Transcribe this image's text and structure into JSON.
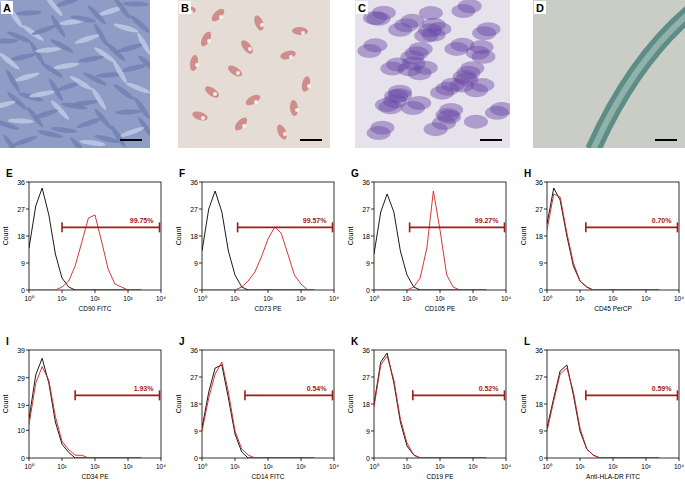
{
  "image_panels": [
    {
      "label": "A"
    },
    {
      "label": "B"
    },
    {
      "label": "C"
    },
    {
      "label": "D"
    }
  ],
  "chart_data": [
    {
      "type": "line",
      "title": "E",
      "x_label": "CD90 FITC",
      "y_label": "Count",
      "log": "x",
      "grid": false,
      "x": [
        1,
        1.6,
        2.5,
        4,
        6.3,
        10,
        16,
        25,
        40,
        63,
        100,
        160,
        250,
        400,
        630,
        1000,
        1600,
        2500
      ],
      "xlim": [
        1,
        10000
      ],
      "xticks": [
        {
          "value": 1,
          "label": "10⁰"
        },
        {
          "value": 10,
          "label": "10¹"
        },
        {
          "value": 100,
          "label": "10²"
        },
        {
          "value": 1000,
          "label": "10³"
        },
        {
          "value": 10000,
          "label": "10⁴"
        }
      ],
      "ylim": [
        0,
        36
      ],
      "yticks": [
        0,
        9,
        18,
        27,
        36
      ],
      "series": [
        {
          "color": "#000000",
          "values": [
            14,
            28,
            34,
            25,
            12,
            4,
            1,
            0,
            0,
            0,
            0,
            0,
            0,
            0,
            0,
            0,
            0,
            0
          ]
        },
        {
          "color": "#cc2222",
          "values": [
            0,
            0,
            0,
            0,
            0,
            1,
            3,
            8,
            16,
            24,
            25,
            16,
            7,
            2,
            1,
            0,
            0,
            0
          ]
        }
      ],
      "gate": [
        10,
        9000
      ],
      "annotation": "99.75%"
    },
    {
      "type": "line",
      "title": "F",
      "x_label": "CD73 PE",
      "y_label": "Count",
      "log": "x",
      "grid": false,
      "x": [
        1,
        1.6,
        2.5,
        4,
        6.3,
        10,
        16,
        25,
        40,
        63,
        100,
        160,
        250,
        400,
        630,
        1000,
        1600,
        2500
      ],
      "xlim": [
        1,
        10000
      ],
      "xticks": [
        {
          "value": 1,
          "label": "10⁰"
        },
        {
          "value": 10,
          "label": "10¹"
        },
        {
          "value": 100,
          "label": "10²"
        },
        {
          "value": 1000,
          "label": "10³"
        },
        {
          "value": 10000,
          "label": "10⁴"
        }
      ],
      "ylim": [
        0,
        36
      ],
      "yticks": [
        0,
        9,
        18,
        27,
        36
      ],
      "series": [
        {
          "color": "#000000",
          "values": [
            13,
            27,
            33,
            26,
            13,
            5,
            1,
            0,
            0,
            0,
            0,
            0,
            0,
            0,
            0,
            0,
            0,
            0
          ]
        },
        {
          "color": "#cc2222",
          "values": [
            0,
            0,
            0,
            0,
            0,
            0,
            1,
            3,
            6,
            11,
            17,
            21,
            19,
            12,
            5,
            2,
            0,
            0
          ]
        }
      ],
      "gate": [
        12,
        9000
      ],
      "annotation": "99.57%"
    },
    {
      "type": "line",
      "title": "G",
      "x_label": "CD105 PE",
      "y_label": "Count",
      "log": "x",
      "grid": false,
      "x": [
        1,
        1.6,
        2.5,
        4,
        6.3,
        10,
        16,
        25,
        40,
        63,
        100,
        160,
        250,
        400,
        630,
        1000,
        1600,
        2500
      ],
      "xlim": [
        1,
        10000
      ],
      "xticks": [
        {
          "value": 1,
          "label": "10⁰"
        },
        {
          "value": 10,
          "label": "10¹"
        },
        {
          "value": 100,
          "label": "10²"
        },
        {
          "value": 1000,
          "label": "10³"
        },
        {
          "value": 10000,
          "label": "10⁴"
        }
      ],
      "ylim": [
        0,
        36
      ],
      "yticks": [
        0,
        9,
        18,
        27,
        36
      ],
      "series": [
        {
          "color": "#000000",
          "values": [
            12,
            26,
            32,
            26,
            13,
            5,
            1,
            0,
            0,
            0,
            0,
            0,
            0,
            0,
            0,
            0,
            0,
            0
          ]
        },
        {
          "color": "#cc2222",
          "values": [
            0,
            0,
            0,
            0,
            0,
            0,
            1,
            4,
            14,
            33,
            20,
            5,
            1,
            0,
            0,
            0,
            0,
            0
          ]
        }
      ],
      "gate": [
        12,
        9000
      ],
      "annotation": "99.27%"
    },
    {
      "type": "line",
      "title": "H",
      "x_label": "CD45 PerCP",
      "y_label": "Count",
      "log": "x",
      "grid": false,
      "x": [
        1,
        1.6,
        2.5,
        4,
        6.3,
        10,
        16,
        25,
        40,
        63,
        100,
        160,
        250,
        400,
        630,
        1000,
        1600,
        2500
      ],
      "xlim": [
        1,
        10000
      ],
      "xticks": [
        {
          "value": 1,
          "label": "10⁰"
        },
        {
          "value": 10,
          "label": "10¹"
        },
        {
          "value": 100,
          "label": "10²"
        },
        {
          "value": 1000,
          "label": "10³"
        },
        {
          "value": 10000,
          "label": "10⁴"
        }
      ],
      "ylim": [
        0,
        36
      ],
      "yticks": [
        0,
        9,
        18,
        27,
        36
      ],
      "series": [
        {
          "color": "#000000",
          "values": [
            22,
            34,
            30,
            18,
            8,
            3,
            1,
            0,
            0,
            0,
            0,
            0,
            0,
            0,
            0,
            0,
            0,
            0
          ]
        },
        {
          "color": "#cc2222",
          "values": [
            20,
            32,
            31,
            19,
            9,
            3,
            1,
            0,
            0,
            0,
            0,
            0,
            0,
            0,
            0,
            0,
            0,
            0
          ]
        }
      ],
      "gate": [
        15,
        9000
      ],
      "annotation": "0.70%"
    },
    {
      "type": "line",
      "title": "I",
      "x_label": "CD34 PE",
      "y_label": "Count",
      "log": "x",
      "grid": false,
      "x": [
        1,
        1.6,
        2.5,
        4,
        6.3,
        10,
        16,
        25,
        40,
        63,
        100,
        160,
        250,
        400,
        630,
        1000,
        1600,
        2500
      ],
      "xlim": [
        1,
        10000
      ],
      "xticks": [
        {
          "value": 1,
          "label": "10⁰"
        },
        {
          "value": 10,
          "label": "10¹"
        },
        {
          "value": 100,
          "label": "10²"
        },
        {
          "value": 1000,
          "label": "10³"
        },
        {
          "value": 10000,
          "label": "10⁴"
        }
      ],
      "ylim": [
        0,
        39
      ],
      "yticks": [
        0,
        10,
        19,
        29,
        39
      ],
      "series": [
        {
          "color": "#000000",
          "values": [
            14,
            30,
            36,
            27,
            13,
            5,
            2,
            0,
            0,
            0,
            0,
            0,
            0,
            0,
            0,
            0,
            0,
            0
          ]
        },
        {
          "color": "#cc2222",
          "values": [
            12,
            27,
            33,
            28,
            15,
            6,
            3,
            1,
            1,
            0,
            0,
            0,
            0,
            0,
            0,
            0,
            0,
            0
          ]
        }
      ],
      "gate": [
        25,
        9000
      ],
      "annotation": "1.93%"
    },
    {
      "type": "line",
      "title": "J",
      "x_label": "CD14 FITC",
      "y_label": "Count",
      "log": "x",
      "grid": false,
      "x": [
        1,
        1.6,
        2.5,
        4,
        6.3,
        10,
        16,
        25,
        40,
        63,
        100,
        160,
        250,
        400,
        630,
        1000,
        1600,
        2500
      ],
      "xlim": [
        1,
        10000
      ],
      "xticks": [
        {
          "value": 1,
          "label": "10⁰"
        },
        {
          "value": 10,
          "label": "10¹"
        },
        {
          "value": 100,
          "label": "10²"
        },
        {
          "value": 1000,
          "label": "10³"
        },
        {
          "value": 10000,
          "label": "10⁴"
        }
      ],
      "ylim": [
        0,
        36
      ],
      "yticks": [
        0,
        9,
        18,
        27,
        36
      ],
      "series": [
        {
          "color": "#000000",
          "values": [
            10,
            22,
            30,
            31,
            20,
            8,
            2,
            0,
            0,
            0,
            0,
            0,
            0,
            0,
            0,
            0,
            0,
            0
          ]
        },
        {
          "color": "#cc2222",
          "values": [
            9,
            20,
            28,
            32,
            22,
            9,
            3,
            1,
            0,
            0,
            0,
            0,
            0,
            0,
            0,
            0,
            0,
            0
          ]
        }
      ],
      "gate": [
        20,
        9000
      ],
      "annotation": "0.54%"
    },
    {
      "type": "line",
      "title": "K",
      "x_label": "CD19 PE",
      "y_label": "Count",
      "log": "x",
      "grid": false,
      "x": [
        1,
        1.6,
        2.5,
        4,
        6.3,
        10,
        16,
        25,
        40,
        63,
        100,
        160,
        250,
        400,
        630,
        1000,
        1600,
        2500
      ],
      "xlim": [
        1,
        10000
      ],
      "xticks": [
        {
          "value": 1,
          "label": "10⁰"
        },
        {
          "value": 10,
          "label": "10¹"
        },
        {
          "value": 100,
          "label": "10²"
        },
        {
          "value": 1000,
          "label": "10³"
        },
        {
          "value": 10000,
          "label": "10⁴"
        }
      ],
      "ylim": [
        0,
        36
      ],
      "yticks": [
        0,
        9,
        18,
        27,
        36
      ],
      "series": [
        {
          "color": "#000000",
          "values": [
            18,
            32,
            35,
            25,
            12,
            4,
            1,
            0,
            0,
            0,
            0,
            0,
            0,
            0,
            0,
            0,
            0,
            0
          ]
        },
        {
          "color": "#cc2222",
          "values": [
            17,
            31,
            34,
            26,
            13,
            5,
            1,
            0,
            0,
            0,
            0,
            0,
            0,
            0,
            0,
            0,
            0,
            0
          ]
        }
      ],
      "gate": [
        15,
        9000
      ],
      "annotation": "0.52%"
    },
    {
      "type": "line",
      "title": "L",
      "x_label": "Anti-HLA-DR FITC",
      "y_label": "Count",
      "log": "x",
      "grid": false,
      "x": [
        1,
        1.6,
        2.5,
        4,
        6.3,
        10,
        16,
        25,
        40,
        63,
        100,
        160,
        250,
        400,
        630,
        1000,
        1600,
        2500
      ],
      "xlim": [
        1,
        10000
      ],
      "xticks": [
        {
          "value": 1,
          "label": "10⁰"
        },
        {
          "value": 10,
          "label": "10¹"
        },
        {
          "value": 100,
          "label": "10²"
        },
        {
          "value": 1000,
          "label": "10³"
        },
        {
          "value": 10000,
          "label": "10⁴"
        }
      ],
      "ylim": [
        0,
        36
      ],
      "yticks": [
        0,
        9,
        18,
        27,
        36
      ],
      "series": [
        {
          "color": "#000000",
          "values": [
            10,
            20,
            29,
            31,
            21,
            9,
            3,
            1,
            0,
            0,
            0,
            0,
            0,
            0,
            0,
            0,
            0,
            0
          ]
        },
        {
          "color": "#cc2222",
          "values": [
            9,
            19,
            28,
            30,
            22,
            10,
            3,
            1,
            0,
            0,
            0,
            0,
            0,
            0,
            0,
            0,
            0,
            0
          ]
        }
      ],
      "gate": [
        15,
        9000
      ],
      "annotation": "0.59%"
    }
  ]
}
